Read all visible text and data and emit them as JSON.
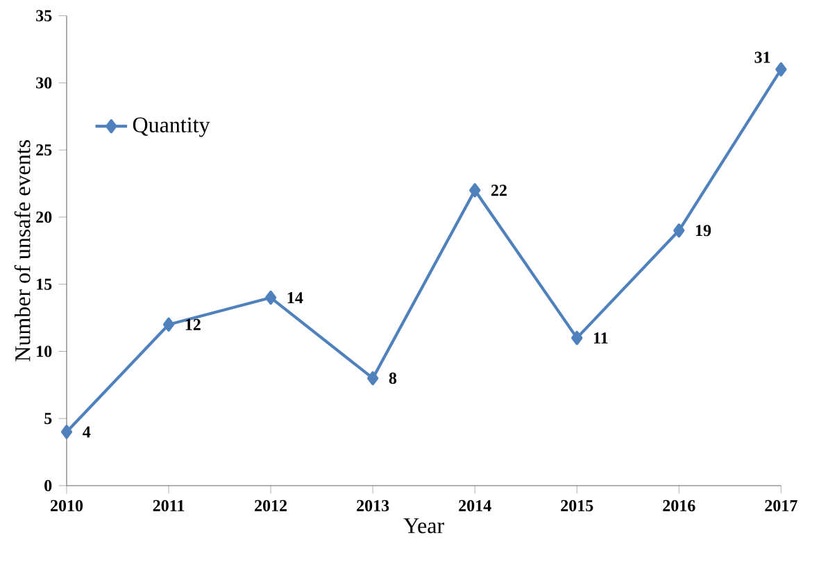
{
  "chart_data": {
    "type": "line",
    "xlabel": "Year",
    "ylabel": "Number of unsafe events",
    "categories": [
      "2010",
      "2011",
      "2012",
      "2013",
      "2014",
      "2015",
      "2016",
      "2017"
    ],
    "series": [
      {
        "name": "Quantity",
        "color": "#4f81bd",
        "values": [
          4,
          12,
          14,
          8,
          22,
          11,
          19,
          31
        ]
      }
    ],
    "ylim": [
      0,
      35
    ],
    "yticks": [
      0,
      5,
      10,
      15,
      20,
      25,
      30,
      35
    ],
    "marker": "diamond",
    "legend": "top left",
    "data_labels": true
  }
}
